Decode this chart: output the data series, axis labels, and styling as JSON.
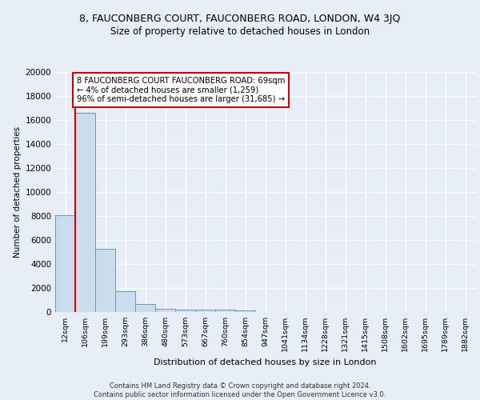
{
  "title_line1": "8, FAUCONBERG COURT, FAUCONBERG ROAD, LONDON, W4 3JQ",
  "title_line2": "Size of property relative to detached houses in London",
  "xlabel": "Distribution of detached houses by size in London",
  "ylabel": "Number of detached properties",
  "bin_labels": [
    "12sqm",
    "106sqm",
    "199sqm",
    "293sqm",
    "386sqm",
    "480sqm",
    "573sqm",
    "667sqm",
    "760sqm",
    "854sqm",
    "947sqm",
    "1041sqm",
    "1134sqm",
    "1228sqm",
    "1321sqm",
    "1415sqm",
    "1508sqm",
    "1602sqm",
    "1695sqm",
    "1789sqm",
    "1882sqm"
  ],
  "bar_heights": [
    8100,
    16600,
    5300,
    1750,
    700,
    300,
    230,
    200,
    170,
    150,
    0,
    0,
    0,
    0,
    0,
    0,
    0,
    0,
    0,
    0,
    0
  ],
  "bar_color": "#ccdcec",
  "bar_edge_color": "#6699bb",
  "background_color": "#e8eef8",
  "grid_color": "#ffffff",
  "vline_color": "#cc0000",
  "annotation_text": "8 FAUCONBERG COURT FAUCONBERG ROAD: 69sqm\n← 4% of detached houses are smaller (1,259)\n96% of semi-detached houses are larger (31,685) →",
  "annotation_box_color": "#ffffff",
  "annotation_box_edge": "#cc0000",
  "ylim": [
    0,
    20000
  ],
  "yticks": [
    0,
    2000,
    4000,
    6000,
    8000,
    10000,
    12000,
    14000,
    16000,
    18000,
    20000
  ],
  "footer_text": "Contains HM Land Registry data © Crown copyright and database right 2024.\nContains public sector information licensed under the Open Government Licence v3.0.",
  "title_fontsize": 9,
  "subtitle_fontsize": 8.5,
  "figsize": [
    6.0,
    5.0
  ],
  "dpi": 100
}
